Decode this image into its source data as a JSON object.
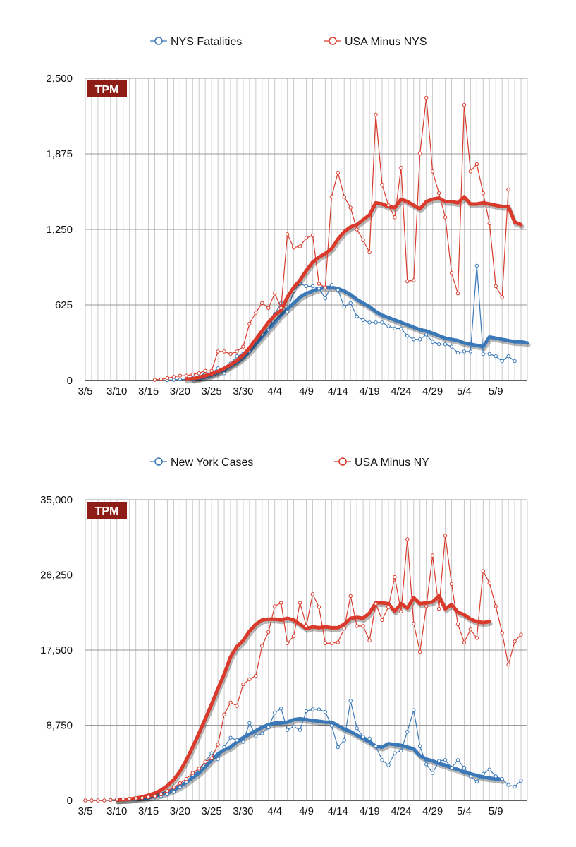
{
  "chart_data": [
    {
      "type": "line",
      "badge": "TPM",
      "ylim": [
        0,
        2500
      ],
      "yticks": [
        "0",
        "625",
        "1,250",
        "1,875",
        "2,500"
      ],
      "ytick_values": [
        0,
        625,
        1250,
        1875,
        2500
      ],
      "xticks": [
        "3/5",
        "3/10",
        "3/15",
        "3/20",
        "3/25",
        "3/30",
        "4/4",
        "4/9",
        "4/14",
        "4/19",
        "4/24",
        "4/29",
        "5/4",
        "5/9"
      ],
      "x_start": "3/5",
      "x_days": 70,
      "legend": [
        "NYS Fatalities",
        "USA Minus NYS"
      ],
      "series": [
        {
          "name": "NYS Fatalities",
          "color": "#3a78b8",
          "raw_start_day": 13,
          "raw": [
            3,
            5,
            8,
            10,
            20,
            30,
            65,
            60,
            100,
            60,
            140,
            200,
            220,
            240,
            330,
            380,
            420,
            550,
            640,
            570,
            740,
            800,
            780,
            780,
            760,
            680,
            790,
            750,
            610,
            640,
            530,
            500,
            480,
            480,
            480,
            450,
            430,
            430,
            370,
            340,
            340,
            380,
            320,
            300,
            300,
            280,
            230,
            240,
            240,
            950,
            220,
            220,
            200,
            160,
            200,
            160
          ],
          "avg_start_day": 17,
          "avg": [
            10,
            18,
            30,
            45,
            65,
            90,
            120,
            150,
            190,
            240,
            300,
            360,
            420,
            480,
            540,
            590,
            640,
            690,
            720,
            740,
            760,
            770,
            770,
            760,
            740,
            710,
            670,
            640,
            610,
            570,
            540,
            520,
            500,
            480,
            460,
            440,
            420,
            410,
            390,
            370,
            350,
            340,
            330,
            310,
            300,
            290,
            280,
            360,
            350,
            340,
            330,
            320,
            320,
            310
          ]
        },
        {
          "name": "USA Minus NYS",
          "color": "#d93a2b",
          "raw_start_day": 11,
          "raw": [
            5,
            10,
            20,
            30,
            40,
            40,
            50,
            60,
            80,
            80,
            240,
            240,
            220,
            240,
            280,
            470,
            560,
            640,
            600,
            720,
            600,
            1210,
            1100,
            1110,
            1180,
            1200,
            800,
            770,
            1520,
            1720,
            1520,
            1430,
            1250,
            1160,
            1060,
            2200,
            1620,
            1450,
            1350,
            1760,
            820,
            830,
            1880,
            2340,
            1730,
            1550,
            1350,
            890,
            720,
            2280,
            1730,
            1790,
            1550,
            1300,
            780,
            690,
            1580
          ],
          "avg_start_day": 16,
          "avg": [
            10,
            15,
            25,
            40,
            55,
            75,
            100,
            130,
            165,
            210,
            270,
            340,
            410,
            480,
            540,
            580,
            690,
            770,
            830,
            910,
            980,
            1020,
            1050,
            1090,
            1170,
            1230,
            1270,
            1290,
            1330,
            1370,
            1470,
            1460,
            1440,
            1430,
            1500,
            1480,
            1450,
            1420,
            1480,
            1500,
            1510,
            1480,
            1480,
            1470,
            1520,
            1460,
            1460,
            1470,
            1460,
            1450,
            1440,
            1440,
            1310,
            1290
          ]
        }
      ]
    },
    {
      "type": "line",
      "badge": "TPM",
      "ylim": [
        0,
        35000
      ],
      "yticks": [
        "0",
        "8,750",
        "17,500",
        "26,250",
        "35,000"
      ],
      "ytick_values": [
        0,
        8750,
        17500,
        26250,
        35000
      ],
      "xticks": [
        "3/5",
        "3/10",
        "3/15",
        "3/20",
        "3/25",
        "3/30",
        "4/4",
        "4/9",
        "4/14",
        "4/19",
        "4/24",
        "4/29",
        "5/4",
        "5/9"
      ],
      "x_start": "3/5",
      "x_days": 70,
      "legend": [
        "New York Cases",
        "USA Minus NY"
      ],
      "series": [
        {
          "name": "New York Cases",
          "color": "#3a78b8",
          "raw_start_day": 0,
          "raw": [
            0,
            0,
            0,
            0,
            50,
            100,
            100,
            150,
            200,
            200,
            300,
            400,
            500,
            700,
            1000,
            1500,
            2200,
            3000,
            3500,
            4500,
            5500,
            4800,
            6200,
            7300,
            7000,
            6800,
            9000,
            7500,
            7800,
            8500,
            10200,
            10700,
            8200,
            8600,
            8200,
            10400,
            10600,
            10600,
            10300,
            8700,
            6200,
            7000,
            11600,
            8400,
            7400,
            7200,
            6300,
            4700,
            4100,
            5500,
            5800,
            8000,
            10500,
            6300,
            4200,
            3200,
            4600,
            4700,
            3800,
            4700,
            3800,
            2800,
            2200,
            3100,
            3600,
            2800,
            2500,
            1800,
            1600,
            2300
          ],
          "avg_start_day": 5,
          "avg": [
            50,
            80,
            120,
            180,
            250,
            350,
            500,
            700,
            950,
            1250,
            1650,
            2100,
            2650,
            3200,
            3900,
            4700,
            5400,
            5900,
            6200,
            6800,
            7300,
            7700,
            8100,
            8500,
            8800,
            9000,
            9000,
            9100,
            9400,
            9500,
            9400,
            9300,
            9200,
            9100,
            9100,
            8700,
            8300,
            8000,
            7600,
            7200,
            6800,
            6300,
            6200,
            6600,
            6500,
            6400,
            6200,
            6000,
            5200,
            4800,
            4600,
            4300,
            4100,
            3800,
            3600,
            3300,
            3100,
            2900,
            2700,
            2600,
            2500,
            2400
          ],
          "avg_stop_day": 69
        },
        {
          "name": "USA Minus NY",
          "color": "#d93a2b",
          "raw_start_day": 0,
          "raw": [
            0,
            0,
            0,
            0,
            50,
            100,
            150,
            200,
            250,
            300,
            400,
            500,
            700,
            1100,
            1500,
            2000,
            2500,
            3200,
            3700,
            4500,
            4900,
            6500,
            10000,
            11400,
            11000,
            13500,
            14100,
            14500,
            18000,
            19600,
            22600,
            23000,
            18300,
            19100,
            23000,
            20300,
            24000,
            22500,
            18300,
            18300,
            18400,
            20000,
            23800,
            20300,
            20300,
            18600,
            22900,
            21000,
            22500,
            26000,
            22000,
            30400,
            20600,
            17300,
            22600,
            28500,
            22300,
            30800,
            25200,
            20500,
            18400,
            19900,
            18900,
            26700,
            25300,
            22600,
            19500,
            15800,
            18500,
            19300
          ],
          "avg_start_day": 5,
          "avg": [
            50,
            100,
            150,
            250,
            400,
            600,
            850,
            1200,
            1700,
            2400,
            3400,
            4700,
            6200,
            7800,
            9500,
            11200,
            13000,
            14700,
            16700,
            17900,
            18600,
            19700,
            20500,
            21000,
            21100,
            21100,
            21000,
            21200,
            21000,
            20500,
            20000,
            20200,
            20100,
            20200,
            20100,
            20100,
            20500,
            21200,
            21300,
            21200,
            21800,
            23000,
            23000,
            22900,
            22000,
            22900,
            22400,
            23600,
            22900,
            23000,
            23100,
            23800,
            22300,
            22800,
            21900,
            21600,
            21100,
            20800,
            20700,
            20800
          ],
          "avg_stop_day": 69
        }
      ]
    }
  ]
}
